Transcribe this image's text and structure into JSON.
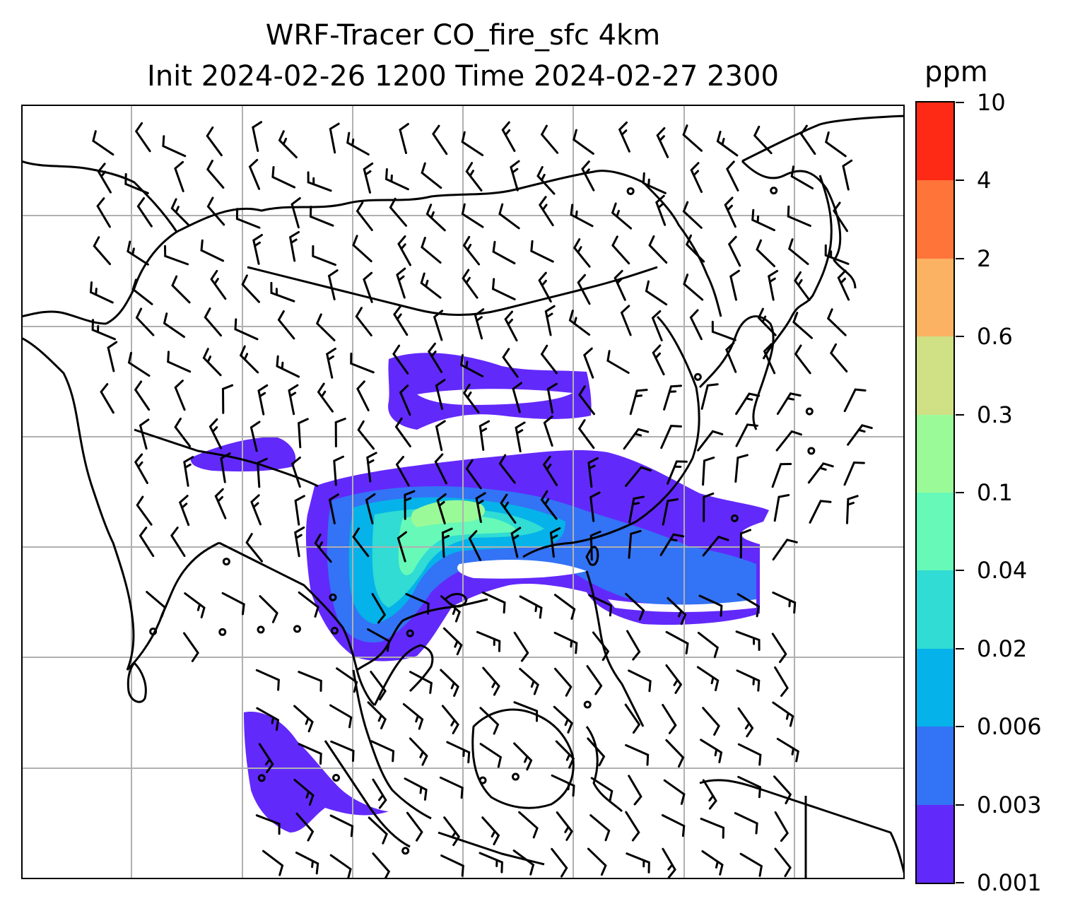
{
  "title": {
    "line1": "WRF-Tracer CO_fire_sfc 4km",
    "line2": "Init 2024-02-26 1200 Time 2024-02-27 2300"
  },
  "colorbar": {
    "units": "ppm",
    "levels": [
      "0.001",
      "0.003",
      "0.006",
      "0.02",
      "0.04",
      "0.1",
      "0.3",
      "0.6",
      "2",
      "4",
      "10"
    ],
    "colors": [
      "#6229fb",
      "#3373f5",
      "#05b2e9",
      "#30dcd3",
      "#67f9b8",
      "#9bfa98",
      "#cfe085",
      "#fcb263",
      "#ff7439",
      "#fe2a15"
    ]
  },
  "map": {
    "field": "CO_fire_sfc",
    "resolution": "4km",
    "gridlines": true,
    "overlay": "wind barbs"
  }
}
